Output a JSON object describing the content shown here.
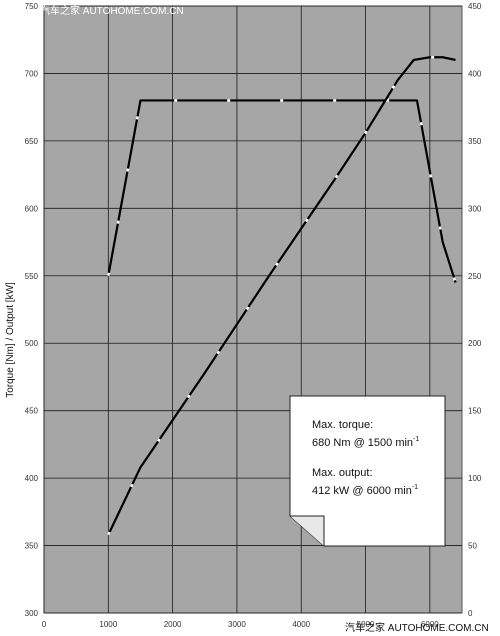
{
  "watermark_top": "汽车之家 AUTOHOME.COM.CN",
  "watermark_bottom": "汽车之家 AUTOHOME.COM.CN",
  "annotation": {
    "line1": "Max. torque:",
    "line2": "680 Nm @ 1500 min",
    "line2_sup": "-1",
    "line3": "Max. output:",
    "line4": "412 kW @ 6000 min",
    "line4_sup": "-1"
  },
  "colors": {
    "plot_bg": "#a6a6a6",
    "grid": "#1a1a1a",
    "line": "#000000",
    "dash_gap": "#ffffff"
  },
  "chart_data": {
    "type": "line",
    "title": "",
    "xlabel": "",
    "ylabel": "Torque [Nm] / Output [kW]",
    "xlim": [
      0,
      6500
    ],
    "ylim_left": [
      300,
      750
    ],
    "ylim_right": [
      0,
      450
    ],
    "x_ticks": [
      "0",
      "1000",
      "2000",
      "3000",
      "4000",
      "5000",
      "6000"
    ],
    "y_left_ticks": [
      "300",
      "350",
      "400",
      "450",
      "500",
      "550",
      "600",
      "650",
      "700",
      "750"
    ],
    "y_right_ticks": [
      "0",
      "50",
      "100",
      "150",
      "200",
      "250",
      "300",
      "350",
      "400",
      "450"
    ],
    "grid": true,
    "series": [
      {
        "axis": "left",
        "unit": "Nm",
        "points": [
          [
            1000,
            550
          ],
          [
            1500,
            680
          ],
          [
            5800,
            680
          ],
          [
            6200,
            575
          ],
          [
            6400,
            545
          ]
        ]
      },
      {
        "axis": "right",
        "unit": "kW",
        "points": [
          [
            1000,
            58
          ],
          [
            1500,
            108
          ],
          [
            2500,
            178
          ],
          [
            3500,
            250
          ],
          [
            4500,
            320
          ],
          [
            5000,
            356
          ],
          [
            5500,
            395
          ],
          [
            5750,
            410
          ],
          [
            6000,
            412
          ],
          [
            6200,
            412
          ],
          [
            6400,
            410
          ]
        ]
      }
    ]
  }
}
